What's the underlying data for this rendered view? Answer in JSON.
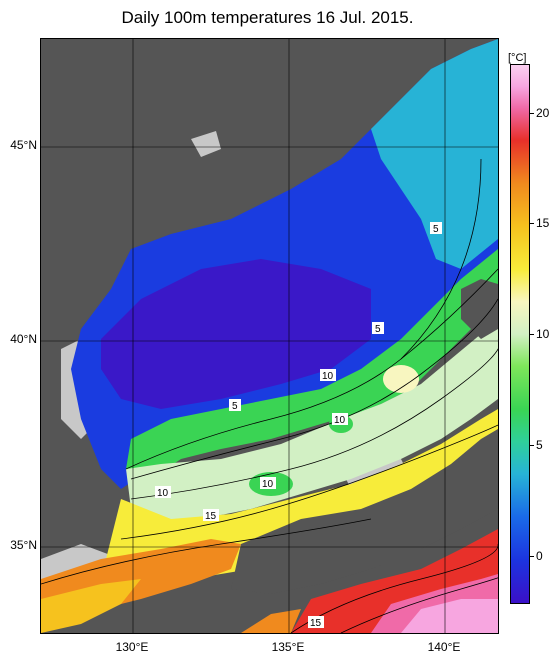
{
  "title": "Daily 100m temperatures 16 Jul. 2015.",
  "map": {
    "lat_labels": [
      "45°N",
      "40°N",
      "35°N"
    ],
    "lon_labels": [
      "130°E",
      "135°E",
      "140°E"
    ],
    "contour_labels": [
      "5",
      "5",
      "10",
      "5",
      "10",
      "10",
      "10",
      "15",
      "15"
    ]
  },
  "colorbar": {
    "unit": "[°C]",
    "ticks": [
      "20",
      "15",
      "10",
      "5",
      "0"
    ]
  },
  "colors": {
    "land": "#555555",
    "no_data": "#c8c8c8",
    "cold": "#1a3ce0",
    "cool": "#2fd09a",
    "mild": "#7ee65a",
    "warm": "#f7ec3a",
    "hot": "#e8302a",
    "hottest": "#f7a6e0"
  }
}
